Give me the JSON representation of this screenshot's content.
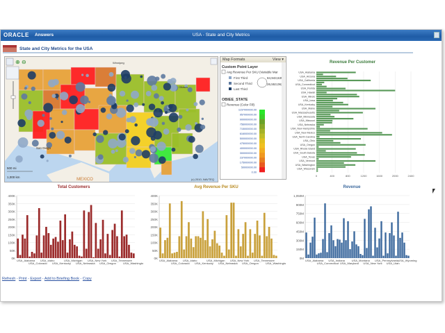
{
  "window": {
    "logo": "ORACLE",
    "app": "Answers",
    "title": "USA - State and City Metrics"
  },
  "page": {
    "title": "State and City Metrics for the USA"
  },
  "map": {
    "labels": {
      "mexico": "MEXICO",
      "copyright": "(c) 2010, NAVTEQ",
      "scale_mi": "500 mi",
      "scale_km": "1,000 km",
      "san_diego": "San Diego",
      "winnipeg": "Winnipeg",
      "ottawa": "Ottawa"
    },
    "state_colors": [
      "#e8a33a",
      "#d9782f",
      "#ff2020",
      "#f0b030",
      "#9bbf2a",
      "#f5d020",
      "#38e838"
    ],
    "point_colors": [
      "#8fa8c8",
      "#5e7aa0",
      "#1e3d66"
    ]
  },
  "legend": {
    "header": "Map Formats",
    "view_label": "View",
    "layer_title": "Custom Point Layer",
    "layer_item": "Avg Revenue Per SKU (Variable Mar",
    "thirds": [
      {
        "label": "First Third",
        "color": "#8fa8c8"
      },
      {
        "label": "Second Third",
        "color": "#5e7aa0"
      },
      {
        "label": "Last Third",
        "color": "#1e3d66"
      }
    ],
    "size_values": [
      "84,943,635",
      "26,553,062"
    ],
    "state_title": "OBIEE_STATE",
    "state_item": "Revenue (Color Fill)",
    "ticks": [
      "1157000000.00",
      "957000000.00",
      "900000000.00",
      "756000000.00",
      "715000000.00",
      "616000000.00",
      "500000000.00",
      "475000000.00",
      "400000000.00",
      "300000000.00",
      "237000000.00",
      "175000000.00",
      "50000000.00",
      "0.00"
    ],
    "gradient": [
      "#29e829",
      "#3bd22a",
      "#6aa32a",
      "#88a82a",
      "#a5b22a",
      "#bfbd28",
      "#e0c020",
      "#f0c020",
      "#f2ad20",
      "#f09820",
      "#e87e20",
      "#e85a20",
      "#f02020"
    ]
  },
  "links": [
    "Refresh",
    "Print",
    "Export",
    "Add to Briefing Book",
    "Copy"
  ],
  "chart_data": [
    {
      "type": "bar",
      "orientation": "horizontal",
      "title": "Revenue Per Customer",
      "color": "#5a9a5a",
      "xlim": [
        0,
        2400
      ],
      "xticks": [
        "0",
        "400",
        "800",
        "1200",
        "1600",
        "2000",
        "2400"
      ],
      "categories": [
        "USA_Alabama",
        "USA_Alaska",
        "USA_Arizona",
        "USA_Arkansas",
        "USA_California",
        "USA_Colorado",
        "USA_Connecticut",
        "USA_Delaware",
        "USA_Florida",
        "USA_Georgia",
        "USA_Hawaii",
        "USA_Idaho",
        "USA_Illinois",
        "USA_Indiana",
        "USA_Iowa",
        "USA_Kansas",
        "USA_Kentucky",
        "USA_Louisiana",
        "USA_Maine",
        "USA_Maryland",
        "USA_Massachusetts",
        "USA_Michigan",
        "USA_Minnesota",
        "USA_Mississippi",
        "USA_Missouri",
        "USA_Montana",
        "USA_Nebraska",
        "USA_Nevada",
        "USA_New Hampshire",
        "USA_New Jersey",
        "USA_New Mexico",
        "USA_New York",
        "USA_North Carolina",
        "USA_North Dakota",
        "USA_Ohio",
        "USA_Oklahoma",
        "USA_Oregon",
        "USA_Pennsylvania",
        "USA_Rhode Island",
        "USA_South Carolina",
        "USA_South Dakota",
        "USA_Tennessee",
        "USA_Texas",
        "USA_Utah",
        "USA_Vermont",
        "USA_Virginia",
        "USA_Washington",
        "USA_West Virginia",
        "USA_Wisconsin",
        "USA_Wyoming"
      ],
      "values": [
        1000,
        170,
        500,
        790,
        1380,
        200,
        140,
        260,
        740,
        2000,
        260,
        1030,
        1090,
        530,
        420,
        680,
        810,
        410,
        1500,
        580,
        1180,
        360,
        460,
        940,
        410,
        400,
        190,
        90,
        1300,
        350,
        1670,
        1920,
        80,
        1130,
        430,
        610,
        1250,
        60,
        1000,
        240,
        1030,
        1230,
        880,
        60,
        1500,
        700,
        990,
        740,
        40,
        40
      ]
    },
    {
      "type": "bar",
      "title": "Total Customers",
      "color": "#9b2b2b",
      "ylim": [
        0,
        400000
      ],
      "yticks": [
        "0K",
        "50K",
        "100K",
        "150K",
        "200K",
        "250K",
        "300K",
        "350K",
        "400K"
      ],
      "xtick_labels": [
        "USA_Alabama",
        "USA_Colorado",
        "USA_Idaho",
        "USA_Kentucky",
        "USA_Michigan",
        "USA_Nebraska",
        "USA_New York",
        "USA_Oregon",
        "USA_Tennessee",
        "USA_Washington"
      ],
      "values": [
        125,
        20,
        150,
        125,
        275,
        10,
        40,
        30,
        145,
        320,
        35,
        145,
        200,
        160,
        85,
        125,
        135,
        105,
        240,
        115,
        280,
        35,
        120,
        170,
        85,
        75,
        15,
        10,
        305,
        60,
        295,
        340,
        5,
        225,
        60,
        120,
        245,
        30,
        155,
        20,
        180,
        220,
        140,
        10,
        305,
        140,
        150,
        85,
        35,
        30
      ]
    },
    {
      "type": "bar",
      "title": "Avg Revenue Per SKU",
      "color": "#c9a13c",
      "ylim": [
        0,
        400000
      ],
      "yticks": [
        "0K",
        "50K",
        "100K",
        "150K",
        "200K",
        "250K",
        "300K",
        "350K",
        "400K"
      ],
      "xtick_labels": [
        "USA_Alabama",
        "USA_Colorado",
        "USA_Idaho",
        "USA_Kentucky",
        "USA_Michigan",
        "USA_Nebraska",
        "USA_New York",
        "USA_Oregon",
        "USA_Tennessee",
        "USA_Washington"
      ],
      "values": [
        195,
        30,
        115,
        130,
        350,
        30,
        35,
        40,
        140,
        365,
        55,
        140,
        230,
        125,
        70,
        140,
        140,
        130,
        300,
        115,
        250,
        75,
        120,
        175,
        95,
        80,
        35,
        15,
        275,
        55,
        355,
        355,
        15,
        185,
        75,
        155,
        230,
        15,
        185,
        35,
        155,
        240,
        145,
        15,
        290,
        140,
        200,
        125,
        20,
        15
      ]
    },
    {
      "type": "bar",
      "title": "Revenue",
      "color": "#3d6a9e",
      "ylim": [
        0,
        1050
      ],
      "yticks": [
        "0M",
        "150M",
        "300M",
        "450M",
        "600M",
        "750M",
        "900M",
        "1,050M"
      ],
      "xtick_labels": [
        "USA_Alabama",
        "USA_Connecticut",
        "USA_Indiana",
        "USA_Maryland",
        "USA_Montana",
        "USA_New York",
        "USA_Pennsylvania",
        "USA_Utah",
        "USA_Wyoming"
      ],
      "values": [
        430,
        60,
        260,
        360,
        680,
        60,
        80,
        90,
        320,
        920,
        100,
        420,
        550,
        300,
        200,
        320,
        310,
        260,
        670,
        300,
        620,
        150,
        280,
        450,
        230,
        200,
        70,
        50,
        660,
        170,
        820,
        870,
        40,
        510,
        180,
        330,
        620,
        40,
        430,
        80,
        420,
        600,
        380,
        40,
        780,
        340,
        430,
        260,
        50,
        40
      ]
    }
  ]
}
